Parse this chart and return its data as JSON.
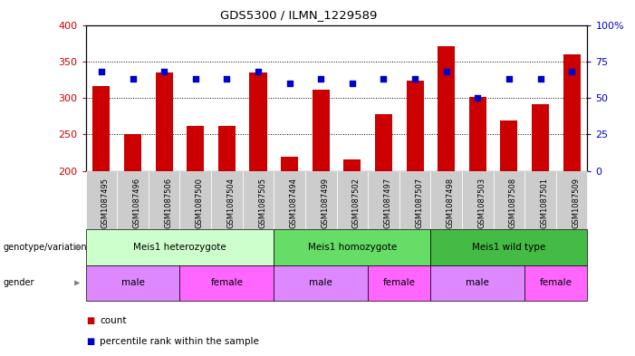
{
  "title": "GDS5300 / ILMN_1229589",
  "samples": [
    "GSM1087495",
    "GSM1087496",
    "GSM1087506",
    "GSM1087500",
    "GSM1087504",
    "GSM1087505",
    "GSM1087494",
    "GSM1087499",
    "GSM1087502",
    "GSM1087497",
    "GSM1087507",
    "GSM1087498",
    "GSM1087503",
    "GSM1087508",
    "GSM1087501",
    "GSM1087509"
  ],
  "counts": [
    316,
    250,
    335,
    262,
    262,
    335,
    220,
    311,
    216,
    278,
    324,
    371,
    301,
    269,
    291,
    360
  ],
  "percentiles": [
    68,
    63,
    68,
    63,
    63,
    68,
    60,
    63,
    60,
    63,
    63,
    68,
    50,
    63,
    63,
    68
  ],
  "ylim_left": [
    200,
    400
  ],
  "ylim_right": [
    0,
    100
  ],
  "yticks_left": [
    200,
    250,
    300,
    350,
    400
  ],
  "yticks_right": [
    0,
    25,
    50,
    75,
    100
  ],
  "bar_color": "#cc0000",
  "dot_color": "#0000cc",
  "genotype_groups": [
    {
      "label": "Meis1 heterozygote",
      "start": 0,
      "end": 6,
      "color": "#ccffcc"
    },
    {
      "label": "Meis1 homozygote",
      "start": 6,
      "end": 11,
      "color": "#66dd66"
    },
    {
      "label": "Meis1 wild type",
      "start": 11,
      "end": 16,
      "color": "#44bb44"
    }
  ],
  "gender_groups": [
    {
      "label": "male",
      "start": 0,
      "end": 3,
      "color": "#dd88ff"
    },
    {
      "label": "female",
      "start": 3,
      "end": 6,
      "color": "#ff66ff"
    },
    {
      "label": "male",
      "start": 6,
      "end": 9,
      "color": "#dd88ff"
    },
    {
      "label": "female",
      "start": 9,
      "end": 11,
      "color": "#ff66ff"
    },
    {
      "label": "male",
      "start": 11,
      "end": 14,
      "color": "#dd88ff"
    },
    {
      "label": "female",
      "start": 14,
      "end": 16,
      "color": "#ff66ff"
    }
  ],
  "legend_count_label": "count",
  "legend_pct_label": "percentile rank within the sample",
  "genotype_label": "genotype/variation",
  "gender_label": "gender",
  "tick_color_left": "#cc0000",
  "tick_color_right": "#0000cc",
  "label_gray_bg": "#dddddd",
  "xticklabel_bg": "#cccccc"
}
